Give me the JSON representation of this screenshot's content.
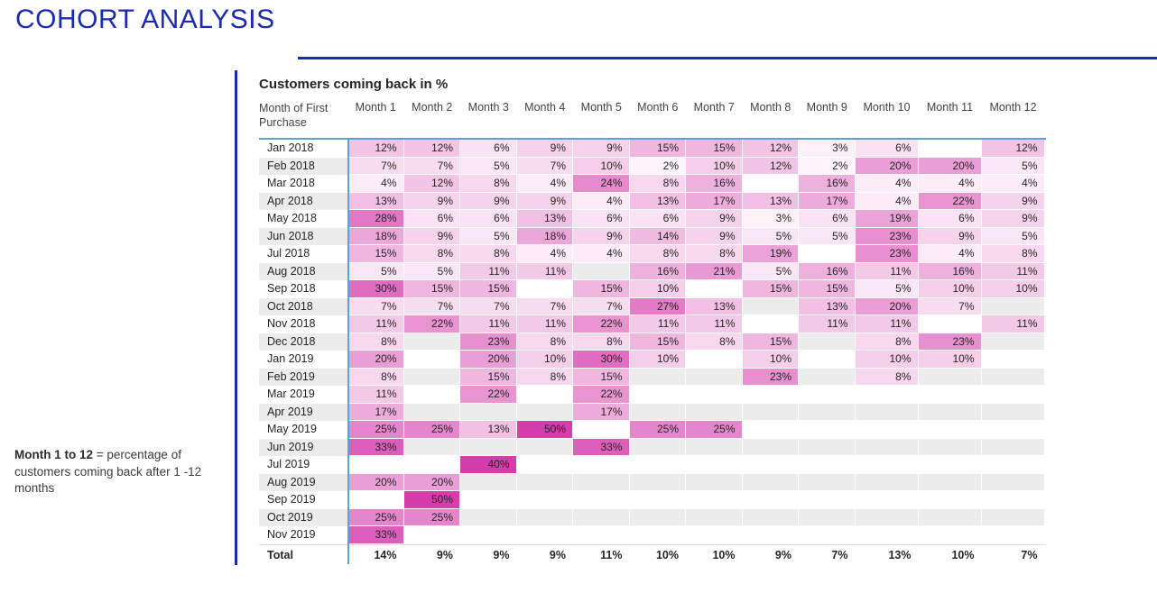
{
  "page": {
    "title": "COHORT ANALYSIS"
  },
  "note": {
    "bold": "Month 1 to 12",
    "rest": " = percentage of customers coming back after 1 -12 months"
  },
  "colors": {
    "accent_blue": "#1b2bb0",
    "grid_blue": "#56a4dd",
    "stripe_gray": "#ececec",
    "heat_min": "#ffffff",
    "heat_max": "#d53cac"
  },
  "chart_data": {
    "type": "heatmap",
    "title": "Customers coming back in %",
    "row_header": "Month of First Purchase",
    "value_format": "percent",
    "legend": "none",
    "color_scale": {
      "min_color": "#ffffff",
      "max_color": "#d53cac",
      "min_value": 0,
      "max_value": 40
    },
    "columns": [
      "Month 1",
      "Month 2",
      "Month 3",
      "Month 4",
      "Month 5",
      "Month 6",
      "Month 7",
      "Month 8",
      "Month 9",
      "Month 10",
      "Month 11",
      "Month 12"
    ],
    "rows": [
      {
        "label": "Jan 2018",
        "values": [
          12,
          12,
          6,
          9,
          9,
          15,
          15,
          12,
          3,
          6,
          null,
          12
        ]
      },
      {
        "label": "Feb 2018",
        "values": [
          7,
          7,
          5,
          7,
          10,
          2,
          10,
          12,
          2,
          20,
          20,
          5
        ]
      },
      {
        "label": "Mar 2018",
        "values": [
          4,
          12,
          8,
          4,
          24,
          8,
          16,
          null,
          16,
          4,
          4,
          4
        ]
      },
      {
        "label": "Apr 2018",
        "values": [
          13,
          9,
          9,
          9,
          4,
          13,
          17,
          13,
          17,
          4,
          22,
          9
        ]
      },
      {
        "label": "May 2018",
        "values": [
          28,
          6,
          6,
          13,
          6,
          6,
          9,
          3,
          6,
          19,
          6,
          9
        ]
      },
      {
        "label": "Jun 2018",
        "values": [
          18,
          9,
          5,
          18,
          9,
          14,
          9,
          5,
          5,
          23,
          9,
          5
        ]
      },
      {
        "label": "Jul 2018",
        "values": [
          15,
          8,
          8,
          4,
          4,
          8,
          8,
          19,
          null,
          23,
          4,
          8
        ]
      },
      {
        "label": "Aug 2018",
        "values": [
          5,
          5,
          11,
          11,
          null,
          16,
          21,
          5,
          16,
          11,
          16,
          11
        ]
      },
      {
        "label": "Sep 2018",
        "values": [
          30,
          15,
          15,
          null,
          15,
          10,
          null,
          15,
          15,
          5,
          10,
          10
        ]
      },
      {
        "label": "Oct 2018",
        "values": [
          7,
          7,
          7,
          7,
          7,
          27,
          13,
          null,
          13,
          20,
          7,
          null
        ]
      },
      {
        "label": "Nov 2018",
        "values": [
          11,
          22,
          11,
          11,
          22,
          11,
          11,
          null,
          11,
          11,
          null,
          11
        ]
      },
      {
        "label": "Dec 2018",
        "values": [
          8,
          null,
          23,
          8,
          8,
          15,
          8,
          15,
          null,
          8,
          23,
          null
        ]
      },
      {
        "label": "Jan 2019",
        "values": [
          20,
          null,
          20,
          10,
          30,
          10,
          null,
          10,
          null,
          10,
          10,
          null
        ]
      },
      {
        "label": "Feb 2019",
        "values": [
          8,
          null,
          15,
          8,
          15,
          null,
          null,
          23,
          null,
          8,
          null,
          null
        ]
      },
      {
        "label": "Mar 2019",
        "values": [
          11,
          null,
          22,
          null,
          22,
          null,
          null,
          null,
          null,
          null,
          null,
          null
        ]
      },
      {
        "label": "Apr 2019",
        "values": [
          17,
          null,
          null,
          null,
          17,
          null,
          null,
          null,
          null,
          null,
          null,
          null
        ]
      },
      {
        "label": "May 2019",
        "values": [
          25,
          25,
          13,
          50,
          null,
          25,
          25,
          null,
          null,
          null,
          null,
          null
        ]
      },
      {
        "label": "Jun 2019",
        "values": [
          33,
          null,
          null,
          null,
          33,
          null,
          null,
          null,
          null,
          null,
          null,
          null
        ]
      },
      {
        "label": "Jul 2019",
        "values": [
          null,
          null,
          40,
          null,
          null,
          null,
          null,
          null,
          null,
          null,
          null,
          null
        ]
      },
      {
        "label": "Aug 2019",
        "values": [
          20,
          20,
          null,
          null,
          null,
          null,
          null,
          null,
          null,
          null,
          null,
          null
        ]
      },
      {
        "label": "Sep 2019",
        "values": [
          null,
          50,
          null,
          null,
          null,
          null,
          null,
          null,
          null,
          null,
          null,
          null
        ]
      },
      {
        "label": "Oct 2019",
        "values": [
          25,
          25,
          null,
          null,
          null,
          null,
          null,
          null,
          null,
          null,
          null,
          null
        ]
      },
      {
        "label": "Nov 2019",
        "values": [
          33,
          null,
          null,
          null,
          null,
          null,
          null,
          null,
          null,
          null,
          null,
          null
        ]
      }
    ],
    "total": {
      "label": "Total",
      "values": [
        14,
        9,
        9,
        9,
        11,
        10,
        10,
        9,
        7,
        13,
        10,
        7
      ]
    }
  }
}
